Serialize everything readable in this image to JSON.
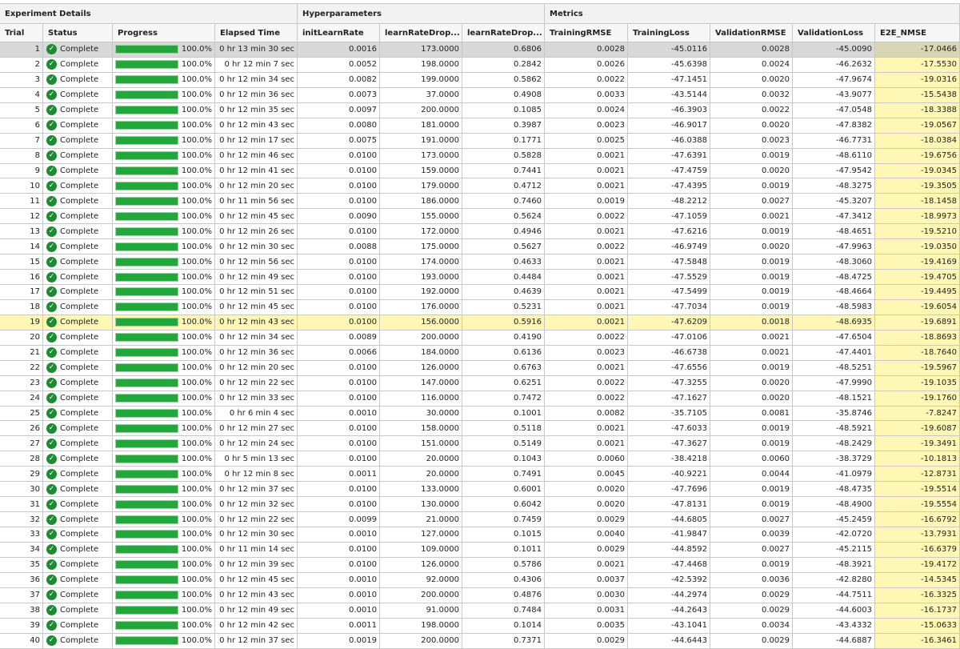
{
  "groups": [
    "Experiment Details",
    "Hyperparameters",
    "Metrics"
  ],
  "columns": [
    "Trial",
    "Status",
    "Progress",
    "Elapsed Time",
    "initLearnRate",
    "learnRateDrop...",
    "learnRateDrop...",
    "TrainingRMSE",
    "TrainingLoss",
    "ValidationRMSE",
    "ValidationLoss",
    "E2E_NMSE"
  ],
  "colors": {
    "progress_fill": "#22a83a",
    "check": "#1e8a33",
    "highlight": "#fff7b3",
    "selected": "#d9d9d9"
  },
  "selected_trial": 1,
  "highlighted_trial": 19,
  "rows": [
    {
      "trial": "1",
      "status": "Complete",
      "progress": "100.0%",
      "elapsed": "0 hr 13 min 30 sec",
      "v": [
        "0.0016",
        "173.0000",
        "0.6806",
        "0.0028",
        "-45.0116",
        "0.0028",
        "-45.0090",
        "-17.0466"
      ]
    },
    {
      "trial": "2",
      "status": "Complete",
      "progress": "100.0%",
      "elapsed": "0 hr 12 min 7 sec",
      "v": [
        "0.0052",
        "198.0000",
        "0.2842",
        "0.0026",
        "-45.6398",
        "0.0024",
        "-46.2632",
        "-17.5530"
      ]
    },
    {
      "trial": "3",
      "status": "Complete",
      "progress": "100.0%",
      "elapsed": "0 hr 12 min 34 sec",
      "v": [
        "0.0082",
        "199.0000",
        "0.5862",
        "0.0022",
        "-47.1451",
        "0.0020",
        "-47.9674",
        "-19.0316"
      ]
    },
    {
      "trial": "4",
      "status": "Complete",
      "progress": "100.0%",
      "elapsed": "0 hr 12 min 36 sec",
      "v": [
        "0.0073",
        "37.0000",
        "0.4908",
        "0.0033",
        "-43.5144",
        "0.0032",
        "-43.9077",
        "-15.5438"
      ]
    },
    {
      "trial": "5",
      "status": "Complete",
      "progress": "100.0%",
      "elapsed": "0 hr 12 min 35 sec",
      "v": [
        "0.0097",
        "200.0000",
        "0.1085",
        "0.0024",
        "-46.3903",
        "0.0022",
        "-47.0548",
        "-18.3388"
      ]
    },
    {
      "trial": "6",
      "status": "Complete",
      "progress": "100.0%",
      "elapsed": "0 hr 12 min 43 sec",
      "v": [
        "0.0080",
        "181.0000",
        "0.3987",
        "0.0023",
        "-46.9017",
        "0.0020",
        "-47.8382",
        "-19.0567"
      ]
    },
    {
      "trial": "7",
      "status": "Complete",
      "progress": "100.0%",
      "elapsed": "0 hr 12 min 17 sec",
      "v": [
        "0.0075",
        "191.0000",
        "0.1771",
        "0.0025",
        "-46.0388",
        "0.0023",
        "-46.7731",
        "-18.0384"
      ]
    },
    {
      "trial": "8",
      "status": "Complete",
      "progress": "100.0%",
      "elapsed": "0 hr 12 min 46 sec",
      "v": [
        "0.0100",
        "173.0000",
        "0.5828",
        "0.0021",
        "-47.6391",
        "0.0019",
        "-48.6110",
        "-19.6756"
      ]
    },
    {
      "trial": "9",
      "status": "Complete",
      "progress": "100.0%",
      "elapsed": "0 hr 12 min 41 sec",
      "v": [
        "0.0100",
        "159.0000",
        "0.7441",
        "0.0021",
        "-47.4759",
        "0.0020",
        "-47.9542",
        "-19.0345"
      ]
    },
    {
      "trial": "10",
      "status": "Complete",
      "progress": "100.0%",
      "elapsed": "0 hr 12 min 20 sec",
      "v": [
        "0.0100",
        "179.0000",
        "0.4712",
        "0.0021",
        "-47.4395",
        "0.0019",
        "-48.3275",
        "-19.3505"
      ]
    },
    {
      "trial": "11",
      "status": "Complete",
      "progress": "100.0%",
      "elapsed": "0 hr 11 min 56 sec",
      "v": [
        "0.0100",
        "186.0000",
        "0.7460",
        "0.0019",
        "-48.2212",
        "0.0027",
        "-45.3207",
        "-18.1458"
      ]
    },
    {
      "trial": "12",
      "status": "Complete",
      "progress": "100.0%",
      "elapsed": "0 hr 12 min 45 sec",
      "v": [
        "0.0090",
        "155.0000",
        "0.5624",
        "0.0022",
        "-47.1059",
        "0.0021",
        "-47.3412",
        "-18.9973"
      ]
    },
    {
      "trial": "13",
      "status": "Complete",
      "progress": "100.0%",
      "elapsed": "0 hr 12 min 26 sec",
      "v": [
        "0.0100",
        "172.0000",
        "0.4946",
        "0.0021",
        "-47.6216",
        "0.0019",
        "-48.4651",
        "-19.5210"
      ]
    },
    {
      "trial": "14",
      "status": "Complete",
      "progress": "100.0%",
      "elapsed": "0 hr 12 min 30 sec",
      "v": [
        "0.0088",
        "175.0000",
        "0.5627",
        "0.0022",
        "-46.9749",
        "0.0020",
        "-47.9963",
        "-19.0350"
      ]
    },
    {
      "trial": "15",
      "status": "Complete",
      "progress": "100.0%",
      "elapsed": "0 hr 12 min 56 sec",
      "v": [
        "0.0100",
        "174.0000",
        "0.4633",
        "0.0021",
        "-47.5848",
        "0.0019",
        "-48.3060",
        "-19.4169"
      ]
    },
    {
      "trial": "16",
      "status": "Complete",
      "progress": "100.0%",
      "elapsed": "0 hr 12 min 49 sec",
      "v": [
        "0.0100",
        "193.0000",
        "0.4484",
        "0.0021",
        "-47.5529",
        "0.0019",
        "-48.4725",
        "-19.4705"
      ]
    },
    {
      "trial": "17",
      "status": "Complete",
      "progress": "100.0%",
      "elapsed": "0 hr 12 min 51 sec",
      "v": [
        "0.0100",
        "192.0000",
        "0.4639",
        "0.0021",
        "-47.5499",
        "0.0019",
        "-48.4664",
        "-19.4495"
      ]
    },
    {
      "trial": "18",
      "status": "Complete",
      "progress": "100.0%",
      "elapsed": "0 hr 12 min 45 sec",
      "v": [
        "0.0100",
        "176.0000",
        "0.5231",
        "0.0021",
        "-47.7034",
        "0.0019",
        "-48.5983",
        "-19.6054"
      ]
    },
    {
      "trial": "19",
      "status": "Complete",
      "progress": "100.0%",
      "elapsed": "0 hr 12 min 43 sec",
      "v": [
        "0.0100",
        "156.0000",
        "0.5916",
        "0.0021",
        "-47.6209",
        "0.0018",
        "-48.6935",
        "-19.6891"
      ]
    },
    {
      "trial": "20",
      "status": "Complete",
      "progress": "100.0%",
      "elapsed": "0 hr 12 min 34 sec",
      "v": [
        "0.0089",
        "200.0000",
        "0.4190",
        "0.0022",
        "-47.0106",
        "0.0021",
        "-47.6504",
        "-18.8693"
      ]
    },
    {
      "trial": "21",
      "status": "Complete",
      "progress": "100.0%",
      "elapsed": "0 hr 12 min 36 sec",
      "v": [
        "0.0066",
        "184.0000",
        "0.6136",
        "0.0023",
        "-46.6738",
        "0.0021",
        "-47.4401",
        "-18.7640"
      ]
    },
    {
      "trial": "22",
      "status": "Complete",
      "progress": "100.0%",
      "elapsed": "0 hr 12 min 20 sec",
      "v": [
        "0.0100",
        "126.0000",
        "0.6763",
        "0.0021",
        "-47.6556",
        "0.0019",
        "-48.5251",
        "-19.5967"
      ]
    },
    {
      "trial": "23",
      "status": "Complete",
      "progress": "100.0%",
      "elapsed": "0 hr 12 min 22 sec",
      "v": [
        "0.0100",
        "147.0000",
        "0.6251",
        "0.0022",
        "-47.3255",
        "0.0020",
        "-47.9990",
        "-19.1035"
      ]
    },
    {
      "trial": "24",
      "status": "Complete",
      "progress": "100.0%",
      "elapsed": "0 hr 12 min 33 sec",
      "v": [
        "0.0100",
        "116.0000",
        "0.7472",
        "0.0022",
        "-47.1627",
        "0.0020",
        "-48.1521",
        "-19.1760"
      ]
    },
    {
      "trial": "25",
      "status": "Complete",
      "progress": "100.0%",
      "elapsed": "0 hr 6 min 4 sec",
      "v": [
        "0.0010",
        "30.0000",
        "0.1001",
        "0.0082",
        "-35.7105",
        "0.0081",
        "-35.8746",
        "-7.8247"
      ]
    },
    {
      "trial": "26",
      "status": "Complete",
      "progress": "100.0%",
      "elapsed": "0 hr 12 min 27 sec",
      "v": [
        "0.0100",
        "158.0000",
        "0.5118",
        "0.0021",
        "-47.6033",
        "0.0019",
        "-48.5921",
        "-19.6087"
      ]
    },
    {
      "trial": "27",
      "status": "Complete",
      "progress": "100.0%",
      "elapsed": "0 hr 12 min 24 sec",
      "v": [
        "0.0100",
        "151.0000",
        "0.5149",
        "0.0021",
        "-47.3627",
        "0.0019",
        "-48.2429",
        "-19.3491"
      ]
    },
    {
      "trial": "28",
      "status": "Complete",
      "progress": "100.0%",
      "elapsed": "0 hr 5 min 13 sec",
      "v": [
        "0.0100",
        "20.0000",
        "0.1043",
        "0.0060",
        "-38.4218",
        "0.0060",
        "-38.3729",
        "-10.1813"
      ]
    },
    {
      "trial": "29",
      "status": "Complete",
      "progress": "100.0%",
      "elapsed": "0 hr 12 min 8 sec",
      "v": [
        "0.0011",
        "20.0000",
        "0.7491",
        "0.0045",
        "-40.9221",
        "0.0044",
        "-41.0979",
        "-12.8731"
      ]
    },
    {
      "trial": "30",
      "status": "Complete",
      "progress": "100.0%",
      "elapsed": "0 hr 12 min 37 sec",
      "v": [
        "0.0100",
        "133.0000",
        "0.6001",
        "0.0020",
        "-47.7696",
        "0.0019",
        "-48.4735",
        "-19.5514"
      ]
    },
    {
      "trial": "31",
      "status": "Complete",
      "progress": "100.0%",
      "elapsed": "0 hr 12 min 32 sec",
      "v": [
        "0.0100",
        "130.0000",
        "0.6042",
        "0.0020",
        "-47.8131",
        "0.0019",
        "-48.4900",
        "-19.5554"
      ]
    },
    {
      "trial": "32",
      "status": "Complete",
      "progress": "100.0%",
      "elapsed": "0 hr 12 min 22 sec",
      "v": [
        "0.0099",
        "21.0000",
        "0.7459",
        "0.0029",
        "-44.6805",
        "0.0027",
        "-45.2459",
        "-16.6792"
      ]
    },
    {
      "trial": "33",
      "status": "Complete",
      "progress": "100.0%",
      "elapsed": "0 hr 12 min 30 sec",
      "v": [
        "0.0010",
        "127.0000",
        "0.1015",
        "0.0040",
        "-41.9847",
        "0.0039",
        "-42.0720",
        "-13.7931"
      ]
    },
    {
      "trial": "34",
      "status": "Complete",
      "progress": "100.0%",
      "elapsed": "0 hr 11 min 14 sec",
      "v": [
        "0.0100",
        "109.0000",
        "0.1011",
        "0.0029",
        "-44.8592",
        "0.0027",
        "-45.2115",
        "-16.6379"
      ]
    },
    {
      "trial": "35",
      "status": "Complete",
      "progress": "100.0%",
      "elapsed": "0 hr 12 min 39 sec",
      "v": [
        "0.0100",
        "126.0000",
        "0.5786",
        "0.0021",
        "-47.4468",
        "0.0019",
        "-48.3921",
        "-19.4172"
      ]
    },
    {
      "trial": "36",
      "status": "Complete",
      "progress": "100.0%",
      "elapsed": "0 hr 12 min 45 sec",
      "v": [
        "0.0010",
        "92.0000",
        "0.4306",
        "0.0037",
        "-42.5392",
        "0.0036",
        "-42.8280",
        "-14.5345"
      ]
    },
    {
      "trial": "37",
      "status": "Complete",
      "progress": "100.0%",
      "elapsed": "0 hr 12 min 43 sec",
      "v": [
        "0.0010",
        "200.0000",
        "0.4876",
        "0.0030",
        "-44.2974",
        "0.0029",
        "-44.7511",
        "-16.3325"
      ]
    },
    {
      "trial": "38",
      "status": "Complete",
      "progress": "100.0%",
      "elapsed": "0 hr 12 min 49 sec",
      "v": [
        "0.0010",
        "91.0000",
        "0.7484",
        "0.0031",
        "-44.2643",
        "0.0029",
        "-44.6003",
        "-16.1737"
      ]
    },
    {
      "trial": "39",
      "status": "Complete",
      "progress": "100.0%",
      "elapsed": "0 hr 12 min 42 sec",
      "v": [
        "0.0011",
        "198.0000",
        "0.1014",
        "0.0035",
        "-43.1041",
        "0.0034",
        "-43.4332",
        "-15.0633"
      ]
    },
    {
      "trial": "40",
      "status": "Complete",
      "progress": "100.0%",
      "elapsed": "0 hr 12 min 37 sec",
      "v": [
        "0.0019",
        "200.0000",
        "0.7371",
        "0.0029",
        "-44.6443",
        "0.0029",
        "-44.6887",
        "-16.3461"
      ]
    }
  ]
}
